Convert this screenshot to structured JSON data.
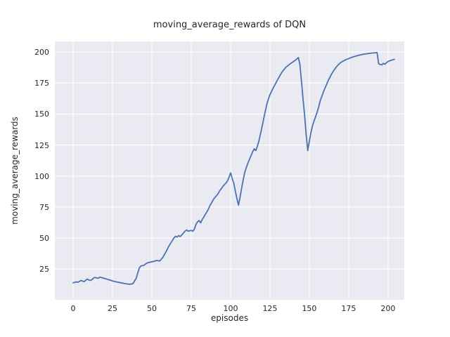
{
  "chart_data": {
    "type": "line",
    "title": "moving_average_rewards of DQN",
    "xlabel": "episodes",
    "ylabel": "moving_average_rewards",
    "x_ticks": [
      0,
      25,
      50,
      75,
      100,
      125,
      150,
      175,
      200
    ],
    "y_ticks": [
      25,
      50,
      75,
      100,
      125,
      150,
      175,
      200
    ],
    "xlim": [
      -11.6,
      210.3
    ],
    "ylim": [
      0.3,
      208.5
    ],
    "grid": true,
    "legend": "none",
    "colors": {
      "line": "#4C72B0",
      "plot_background": "#EAEAF2",
      "grid": "#FFFFFF",
      "text": "#262626",
      "figure_background": "#FFFFFF"
    },
    "series": [
      {
        "name": "moving_average_rewards",
        "points": [
          [
            0,
            14
          ],
          [
            1,
            14.3
          ],
          [
            2,
            14.7
          ],
          [
            3,
            14.4
          ],
          [
            4,
            15.1
          ],
          [
            5,
            15.8
          ],
          [
            6,
            15.4
          ],
          [
            7,
            14.9
          ],
          [
            8,
            16.1
          ],
          [
            9,
            17
          ],
          [
            10,
            16.2
          ],
          [
            11,
            15.9
          ],
          [
            12,
            16.6
          ],
          [
            13,
            17.9
          ],
          [
            14,
            18.3
          ],
          [
            15,
            17.9
          ],
          [
            16,
            17.6
          ],
          [
            17,
            18.6
          ],
          [
            18,
            18.2
          ],
          [
            20,
            17.5
          ],
          [
            22,
            16.7
          ],
          [
            24,
            15.9
          ],
          [
            26,
            15.2
          ],
          [
            28,
            14.6
          ],
          [
            30,
            14.1
          ],
          [
            32,
            13.6
          ],
          [
            34,
            13.1
          ],
          [
            36,
            12.8
          ],
          [
            38,
            13.3
          ],
          [
            40,
            17.5
          ],
          [
            42,
            26
          ],
          [
            43,
            27.5
          ],
          [
            45,
            28.2
          ],
          [
            47,
            30
          ],
          [
            49,
            30.6
          ],
          [
            51,
            31.2
          ],
          [
            53,
            32
          ],
          [
            55,
            31.6
          ],
          [
            57,
            34.5
          ],
          [
            59,
            39
          ],
          [
            61,
            44
          ],
          [
            63,
            48
          ],
          [
            64,
            50
          ],
          [
            65,
            51.5
          ],
          [
            66,
            50.8
          ],
          [
            67,
            52
          ],
          [
            68,
            51.2
          ],
          [
            70,
            54
          ],
          [
            71,
            55.5
          ],
          [
            72,
            56.6
          ],
          [
            73,
            55.6
          ],
          [
            74,
            55.9
          ],
          [
            75,
            56.2
          ],
          [
            76,
            55.6
          ],
          [
            77,
            57.2
          ],
          [
            78,
            61
          ],
          [
            79,
            63
          ],
          [
            80,
            64.2
          ],
          [
            81,
            62.3
          ],
          [
            82,
            65
          ],
          [
            83,
            67
          ],
          [
            84,
            69.2
          ],
          [
            85,
            71.3
          ],
          [
            86,
            73.6
          ],
          [
            87,
            76.5
          ],
          [
            88,
            78.6
          ],
          [
            89,
            81
          ],
          [
            90,
            82.6
          ],
          [
            91,
            84.2
          ],
          [
            92,
            85.6
          ],
          [
            93,
            88
          ],
          [
            94,
            89.6
          ],
          [
            95,
            91.5
          ],
          [
            96,
            93
          ],
          [
            97,
            94.2
          ],
          [
            98,
            96
          ],
          [
            99,
            99
          ],
          [
            100,
            102.6
          ],
          [
            101,
            98
          ],
          [
            102,
            94.5
          ],
          [
            103,
            88
          ],
          [
            104,
            82
          ],
          [
            105,
            76.5
          ],
          [
            106,
            83
          ],
          [
            107,
            90
          ],
          [
            108,
            97
          ],
          [
            109,
            103
          ],
          [
            110,
            107
          ],
          [
            111,
            110.5
          ],
          [
            112,
            113.5
          ],
          [
            113,
            116.5
          ],
          [
            114,
            119.5
          ],
          [
            115,
            122
          ],
          [
            116,
            120.6
          ],
          [
            117,
            124
          ],
          [
            118,
            128.5
          ],
          [
            119,
            134
          ],
          [
            120,
            140
          ],
          [
            121,
            146
          ],
          [
            122,
            152
          ],
          [
            123,
            158
          ],
          [
            124,
            162
          ],
          [
            125,
            165.5
          ],
          [
            126,
            168.2
          ],
          [
            127,
            170.8
          ],
          [
            128,
            173.2
          ],
          [
            129,
            175.6
          ],
          [
            130,
            178
          ],
          [
            131,
            180.2
          ],
          [
            132,
            182.4
          ],
          [
            133,
            184.4
          ],
          [
            134,
            186
          ],
          [
            135,
            187.5
          ],
          [
            136,
            188.6
          ],
          [
            137,
            189.6
          ],
          [
            138,
            190.6
          ],
          [
            139,
            191.5
          ],
          [
            140,
            192.4
          ],
          [
            141,
            193.2
          ],
          [
            142,
            194.3
          ],
          [
            143,
            195.5
          ],
          [
            144,
            190
          ],
          [
            145,
            177
          ],
          [
            146,
            162
          ],
          [
            147,
            149
          ],
          [
            148,
            133
          ],
          [
            149,
            120.5
          ],
          [
            150,
            128
          ],
          [
            151,
            135
          ],
          [
            152,
            140.5
          ],
          [
            153,
            144.5
          ],
          [
            154,
            148
          ],
          [
            155,
            151.5
          ],
          [
            156,
            156
          ],
          [
            157,
            161
          ],
          [
            158,
            164.5
          ],
          [
            159,
            168
          ],
          [
            160,
            171
          ],
          [
            161,
            174
          ],
          [
            162,
            177
          ],
          [
            163,
            179.5
          ],
          [
            164,
            182
          ],
          [
            165,
            184
          ],
          [
            166,
            186
          ],
          [
            167,
            187.7
          ],
          [
            168,
            189.2
          ],
          [
            169,
            190.5
          ],
          [
            170,
            191.5
          ],
          [
            171,
            192.3
          ],
          [
            172,
            193
          ],
          [
            173,
            193.7
          ],
          [
            174,
            194.2
          ],
          [
            175,
            194.7
          ],
          [
            176,
            195.2
          ],
          [
            177,
            195.7
          ],
          [
            178,
            196.1
          ],
          [
            179,
            196.5
          ],
          [
            180,
            196.9
          ],
          [
            181,
            197.2
          ],
          [
            182,
            197.5
          ],
          [
            183,
            197.8
          ],
          [
            184,
            198.1
          ],
          [
            185,
            198.3
          ],
          [
            186,
            198.5
          ],
          [
            187,
            198.7
          ],
          [
            188,
            198.9
          ],
          [
            189,
            199
          ],
          [
            190,
            199.2
          ],
          [
            191,
            199.3
          ],
          [
            192,
            199.4
          ],
          [
            193,
            199.5
          ],
          [
            194,
            190.5
          ],
          [
            195,
            189.9
          ],
          [
            196,
            189.6
          ],
          [
            197,
            190.9
          ],
          [
            198,
            190.1
          ],
          [
            199,
            191.4
          ],
          [
            200,
            192.3
          ],
          [
            201,
            192.9
          ],
          [
            202,
            193.3
          ],
          [
            203,
            193.7
          ],
          [
            204,
            194.1
          ]
        ]
      }
    ]
  }
}
